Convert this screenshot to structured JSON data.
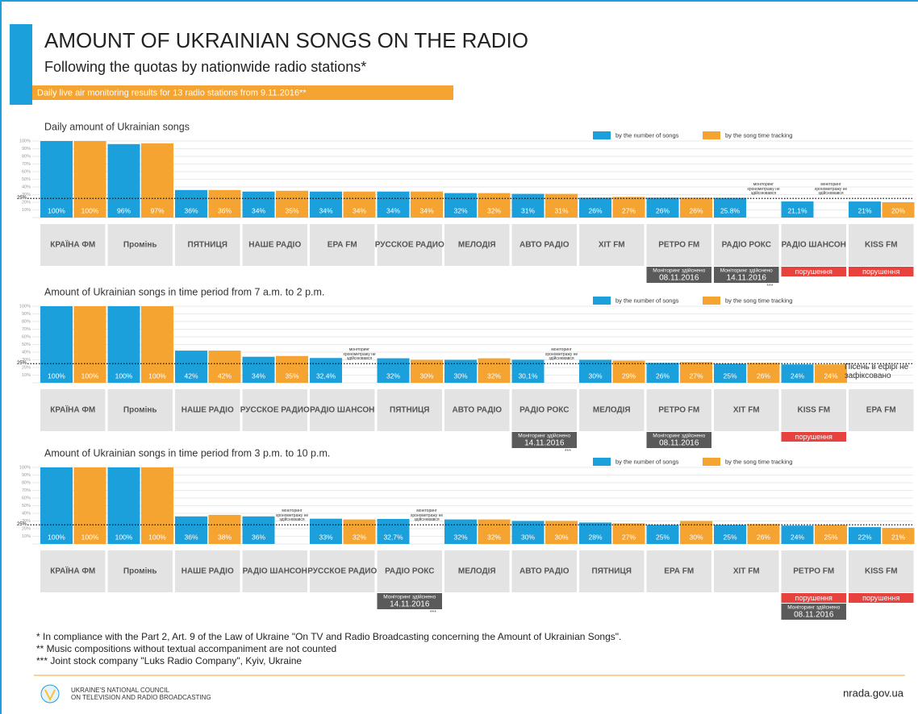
{
  "title": "AMOUNT OF UKRAINIAN SONGS ON THE RADIO",
  "subtitle": "Following the quotas by nationwide radio stations*",
  "banner": "Daily live air monitoring results for 13 radio stations from 9.11.2016**",
  "chart_data": [
    {
      "type": "bar",
      "title": "Daily amount of Ukrainian songs",
      "categories": [
        "КРАЇНА ФМ",
        "Промінь",
        "ПЯТНИЦЯ",
        "НАШЕ РАДІО",
        "ЕРА FM",
        "РУССКОЕ РАДИО",
        "МЕЛОДІЯ",
        "АВТО РАДІО",
        "ХІТ FM",
        "РЕТРО FM",
        "РАДІО РОКС",
        "РАДІО ШАНСОН",
        "KISS FM"
      ],
      "series": [
        {
          "name": "by the number of songs",
          "color": "#1ba0dc",
          "values": [
            100,
            96,
            36,
            34,
            34,
            34,
            32,
            31,
            26,
            26,
            25.8,
            21.1,
            21
          ],
          "value_labels": [
            "100%",
            "96%",
            "36%",
            "34%",
            "34%",
            "34%",
            "32%",
            "31%",
            "26%",
            "26%",
            "25.8%",
            "21,1%",
            "21%"
          ]
        },
        {
          "name": "by the song time tracking",
          "color": "#f6a431",
          "values": [
            100,
            97,
            36,
            35,
            34,
            34,
            32,
            31,
            27,
            26,
            null,
            null,
            20
          ],
          "value_labels": [
            "100%",
            "97%",
            "36%",
            "35%",
            "34%",
            "34%",
            "32%",
            "31%",
            "27%",
            "26%",
            "моніторинг хронометражу не здійснювався",
            "моніторинг хронометражу не здійснювався",
            "20%"
          ]
        }
      ],
      "ylim": [
        0,
        100
      ],
      "yticks": [
        {
          "value": 10,
          "label": "10%"
        },
        {
          "value": 20,
          "label": "20%"
        },
        {
          "value": 30,
          "label": "30%"
        },
        {
          "value": 40,
          "label": "40%"
        },
        {
          "value": 50,
          "label": "50%"
        },
        {
          "value": 60,
          "label": "60%"
        },
        {
          "value": 70,
          "label": "70%"
        },
        {
          "value": 80,
          "label": "80%"
        },
        {
          "value": 90,
          "label": "90%"
        },
        {
          "value": 100,
          "label": "100%"
        }
      ],
      "reference": {
        "value": 25,
        "label": "25%"
      },
      "grid": true,
      "monitoring": [
        null,
        null,
        null,
        null,
        null,
        null,
        null,
        null,
        null,
        {
          "label": "Моніторинг здійснено",
          "date": "08.11.2016"
        },
        {
          "label": "Моніторинг здійснено",
          "date": "14.11.2016",
          "source": "***"
        },
        null,
        null
      ],
      "violation": [
        null,
        null,
        null,
        null,
        null,
        null,
        null,
        null,
        null,
        null,
        null,
        "порушення",
        "порушення"
      ]
    },
    {
      "type": "bar",
      "title": "Amount of Ukrainian songs in time period from 7 a.m. to 2 p.m.",
      "categories": [
        "КРАЇНА ФМ",
        "Промінь",
        "НАШЕ РАДІО",
        "РУССКОЕ РАДИО",
        "РАДІО ШАНСОН",
        "ПЯТНИЦЯ",
        "АВТО РАДІО",
        "РАДІО РОКС",
        "МЕЛОДІЯ",
        "РЕТРО FM",
        "ХІТ FM",
        "KISS FM",
        "ЕРА FM"
      ],
      "series": [
        {
          "name": "by the number of songs",
          "color": "#1ba0dc",
          "values": [
            100,
            100,
            42,
            34,
            32.4,
            32,
            30,
            30.1,
            30,
            26,
            25,
            24,
            null
          ],
          "value_labels": [
            "100%",
            "100%",
            "42%",
            "34%",
            "32,4%",
            "32%",
            "30%",
            "30,1%",
            "30%",
            "26%",
            "25%",
            "24%",
            null
          ]
        },
        {
          "name": "by the song time tracking",
          "color": "#f6a431",
          "values": [
            100,
            100,
            42,
            35,
            null,
            30,
            32,
            null,
            29,
            27,
            26,
            24,
            null
          ],
          "value_labels": [
            "100%",
            "100%",
            "42%",
            "35%",
            "моніторинг хронометражу не здійснювався",
            "30%",
            "32%",
            "моніторинг хронометражу не здійснювався",
            "29%",
            "27%",
            "26%",
            "24%",
            null
          ]
        }
      ],
      "ylim": [
        0,
        100
      ],
      "yticks": [
        {
          "value": 10,
          "label": "10%"
        },
        {
          "value": 20,
          "label": "20%"
        },
        {
          "value": 30,
          "label": "30%"
        },
        {
          "value": 40,
          "label": "40%"
        },
        {
          "value": 50,
          "label": "50%"
        },
        {
          "value": 60,
          "label": "60%"
        },
        {
          "value": 70,
          "label": "70%"
        },
        {
          "value": 80,
          "label": "80%"
        },
        {
          "value": 90,
          "label": "90%"
        },
        {
          "value": 100,
          "label": "100%"
        }
      ],
      "reference": {
        "value": 25,
        "label": "25%"
      },
      "grid": true,
      "no_songs_label": "Пісень в ефірі не зафіксовано",
      "monitoring": [
        null,
        null,
        null,
        null,
        null,
        null,
        null,
        {
          "label": "Моніторинг здійснено",
          "date": "14.11.2016",
          "source": "***"
        },
        null,
        {
          "label": "Моніторинг здійснено",
          "date": "08.11.2016"
        },
        null,
        null,
        null
      ],
      "violation": [
        null,
        null,
        null,
        null,
        null,
        null,
        null,
        null,
        null,
        null,
        null,
        "порушення",
        null
      ]
    },
    {
      "type": "bar",
      "title": "Amount of Ukrainian songs in time period from 3 p.m. to 10 p.m.",
      "categories": [
        "КРАЇНА ФМ",
        "Промінь",
        "НАШЕ РАДІО",
        "РАДІО ШАНСОН",
        "РУССКОЕ РАДИО",
        "РАДІО РОКС",
        "МЕЛОДІЯ",
        "АВТО РАДІО",
        "ПЯТНИЦЯ",
        "ЕРА FM",
        "ХІТ FM",
        "РЕТРО FM",
        "KISS FM"
      ],
      "series": [
        {
          "name": "by the number of songs",
          "color": "#1ba0dc",
          "values": [
            100,
            100,
            36,
            36,
            33,
            32.7,
            32,
            30,
            28,
            25,
            25,
            24,
            22
          ],
          "value_labels": [
            "100%",
            "100%",
            "36%",
            "36%",
            "33%",
            "32,7%",
            "32%",
            "30%",
            "28%",
            "25%",
            "25%",
            "24%",
            "22%"
          ]
        },
        {
          "name": "by the song time tracking",
          "color": "#f6a431",
          "values": [
            100,
            100,
            38,
            null,
            32,
            null,
            32,
            30,
            27,
            30,
            26,
            25,
            21
          ],
          "value_labels": [
            "100%",
            "100%",
            "38%",
            "моніторинг хронометражу не здійснювався",
            "32%",
            "моніторинг хронометражу не здійснювався",
            "32%",
            "30%",
            "27%",
            "30%",
            "26%",
            "25%",
            "21%"
          ]
        }
      ],
      "ylim": [
        0,
        100
      ],
      "yticks": [
        {
          "value": 10,
          "label": "10%"
        },
        {
          "value": 20,
          "label": "20%"
        },
        {
          "value": 30,
          "label": "30%"
        },
        {
          "value": 40,
          "label": "40%"
        },
        {
          "value": 50,
          "label": "50%"
        },
        {
          "value": 60,
          "label": "60%"
        },
        {
          "value": 70,
          "label": "70%"
        },
        {
          "value": 80,
          "label": "80%"
        },
        {
          "value": 90,
          "label": "90%"
        },
        {
          "value": 100,
          "label": "100%"
        }
      ],
      "reference": {
        "value": 25,
        "label": "25%"
      },
      "grid": true,
      "monitoring": [
        null,
        null,
        null,
        null,
        null,
        {
          "label": "Моніторинг здійснено",
          "date": "14.11.2016",
          "source": "***"
        },
        null,
        null,
        null,
        null,
        null,
        {
          "label": "Моніторинг здійснено",
          "date": "08.11.2016"
        },
        null
      ],
      "violation": [
        null,
        null,
        null,
        null,
        null,
        null,
        null,
        null,
        null,
        null,
        null,
        "порушення",
        "порушення"
      ]
    }
  ],
  "footnotes": [
    "* In compliance with the Part 2, Art. 9 of the Law of Ukraine \"On TV and Radio Broadcasting concerning the Amount of Ukrainian Songs\".",
    "** Music compositions without textual accompaniment are not counted",
    "*** Joint stock company \"Luks Radio Company\", Kyiv, Ukraine"
  ],
  "footer": {
    "org": [
      "UKRAINE'S NATIONAL COUNCIL",
      "ON TELEVISION AND RADIO BROADCASTING"
    ],
    "url": "nrada.gov.ua"
  }
}
